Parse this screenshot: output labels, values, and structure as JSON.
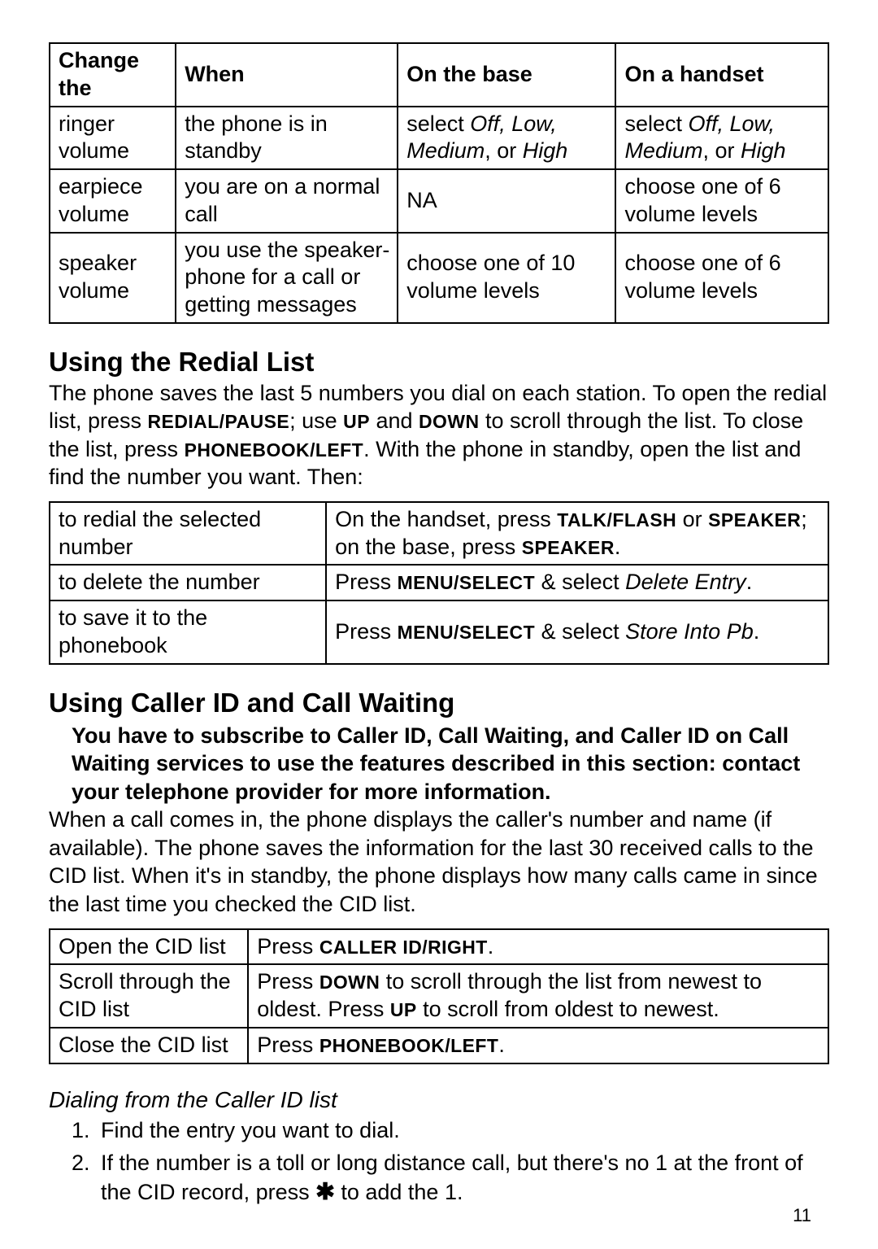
{
  "page_number": "11",
  "colors": {
    "text": "#000000",
    "border": "#000000",
    "background": "#ffffff"
  },
  "table1": {
    "headers": [
      "Change the",
      "When",
      "On the base",
      "On a handset"
    ],
    "rows": [
      {
        "c0": "ringer volume",
        "c1": "the phone is in standby",
        "c2_pre": "select ",
        "c2_em": "Off, Low, Medium",
        "c2_mid": ", or ",
        "c2_em2": "High",
        "c3_pre": "select ",
        "c3_em": "Off, Low, Medium",
        "c3_mid": ", or ",
        "c3_em2": "High"
      },
      {
        "c0": "earpiece volume",
        "c1": "you are on a normal call",
        "c2": "NA",
        "c3": "choose one of 6 volume levels"
      },
      {
        "c0": "speaker volume",
        "c1": "you use the speaker-phone for a call or getting messages",
        "c2": "choose one of 10 volume levels",
        "c3": "choose one of 6 volume levels"
      }
    ]
  },
  "sect1": {
    "title": "Using the Redial List",
    "p_a": "The phone saves the last 5 numbers you dial on each station. To open the redial list, press ",
    "k1": "REDIAL/PAUSE",
    "p_b": "; use ",
    "k2": "UP",
    "p_c": " and ",
    "k3": "DOWN",
    "p_d": " to scroll through the list. To close the list, press ",
    "k4": "PHONEBOOK/LEFT",
    "p_e": ". With the phone in standby, open the list and find the number you want. Then:"
  },
  "table2": {
    "r0": {
      "c0": "to redial the selected number",
      "c1_a": "On the handset, press ",
      "c1_k1": "TALK/FLASH",
      "c1_b": " or ",
      "c1_k2": "SPEAKER",
      "c1_c": "; on the base, press ",
      "c1_k3": "SPEAKER",
      "c1_d": "."
    },
    "r1": {
      "c0": "to delete the number",
      "c1_a": "Press ",
      "c1_k1": "MENU/SELECT",
      "c1_b": " & select ",
      "c1_em": "Delete Entry",
      "c1_d": "."
    },
    "r2": {
      "c0": "to save it to the phonebook",
      "c1_a": "Press ",
      "c1_k1": "MENU/SELECT",
      "c1_b": " & select ",
      "c1_em": "Store Into Pb",
      "c1_d": "."
    }
  },
  "sect2": {
    "title": "Using Caller ID and Call Waiting",
    "notice": "You have to subscribe to Caller ID, Call Waiting, and Caller ID on Call Waiting services to use the features described in this section: contact your telephone provider for more information.",
    "body": "When a call comes in, the phone displays the caller's number and name (if available). The phone saves the information for the last 30 received calls to the CID list. When it's in standby, the phone displays how many calls came in since the last time you checked the CID list."
  },
  "table3": {
    "r0": {
      "c0": "Open the CID list",
      "c1_a": "Press ",
      "c1_k1": "CALLER ID/RIGHT",
      "c1_d": "."
    },
    "r1": {
      "c0": "Scroll through the CID list",
      "c1_a": "Press ",
      "c1_k1": "DOWN",
      "c1_b": " to scroll through the list from newest to oldest. Press ",
      "c1_k2": "UP",
      "c1_c": " to scroll from oldest to newest."
    },
    "r2": {
      "c0": "Close the CID list",
      "c1_a": "Press ",
      "c1_k1": "PHONEBOOK/LEFT",
      "c1_d": "."
    }
  },
  "sect3": {
    "title": "Dialing from the Caller ID list",
    "step1": "Find the entry you want to dial.",
    "step2_a": "If the number is a toll or long distance call, but there's no 1 at the front of the CID record, press ",
    "step2_star": "✱",
    "step2_b": " to add the 1."
  }
}
